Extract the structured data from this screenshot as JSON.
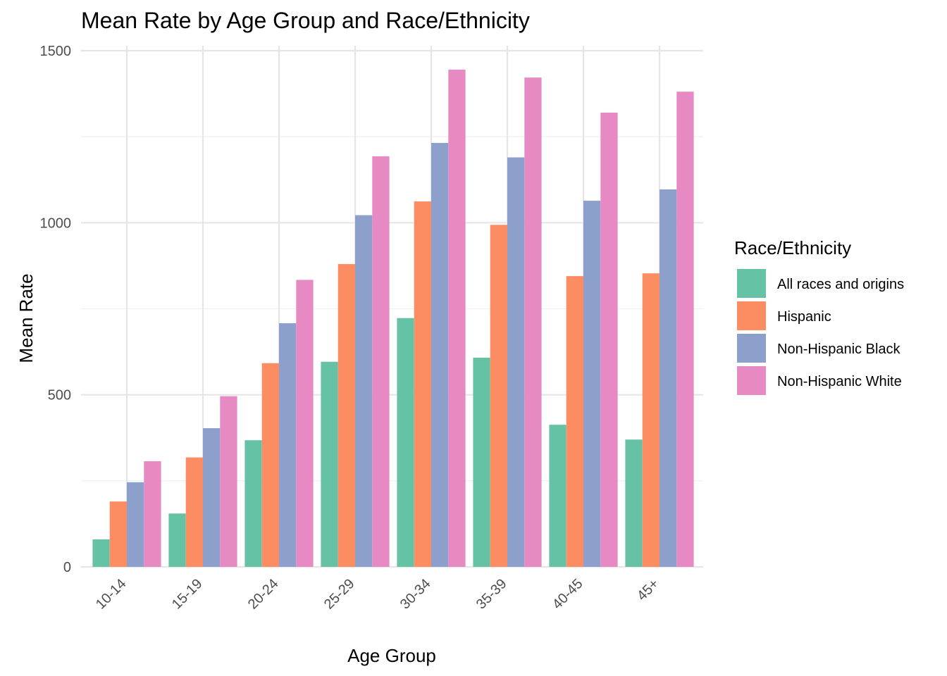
{
  "chart_data": {
    "type": "bar",
    "title": "Mean Rate by Age Group and Race/Ethnicity",
    "xlabel": "Age Group",
    "ylabel": "Mean Rate",
    "categories": [
      "10-14",
      "15-19",
      "20-24",
      "25-29",
      "30-34",
      "35-39",
      "40-45",
      "45+"
    ],
    "ylim": [
      0,
      1500
    ],
    "yticks": [
      0,
      500,
      1000,
      1500
    ],
    "grid": true,
    "legend": {
      "title": "Race/Ethnicity",
      "position": "right"
    },
    "series": [
      {
        "name": "All races and origins",
        "color": "#66c2a5",
        "values": [
          80,
          155,
          368,
          596,
          723,
          608,
          413,
          370
        ]
      },
      {
        "name": "Hispanic",
        "color": "#fc8d62",
        "values": [
          190,
          318,
          592,
          880,
          1062,
          994,
          845,
          853
        ]
      },
      {
        "name": "Non-Hispanic Black",
        "color": "#8da0cb",
        "values": [
          246,
          403,
          708,
          1022,
          1232,
          1190,
          1064,
          1097
        ]
      },
      {
        "name": "Non-Hispanic White",
        "color": "#e78ac3",
        "values": [
          307,
          496,
          834,
          1193,
          1445,
          1422,
          1320,
          1381
        ]
      }
    ]
  }
}
